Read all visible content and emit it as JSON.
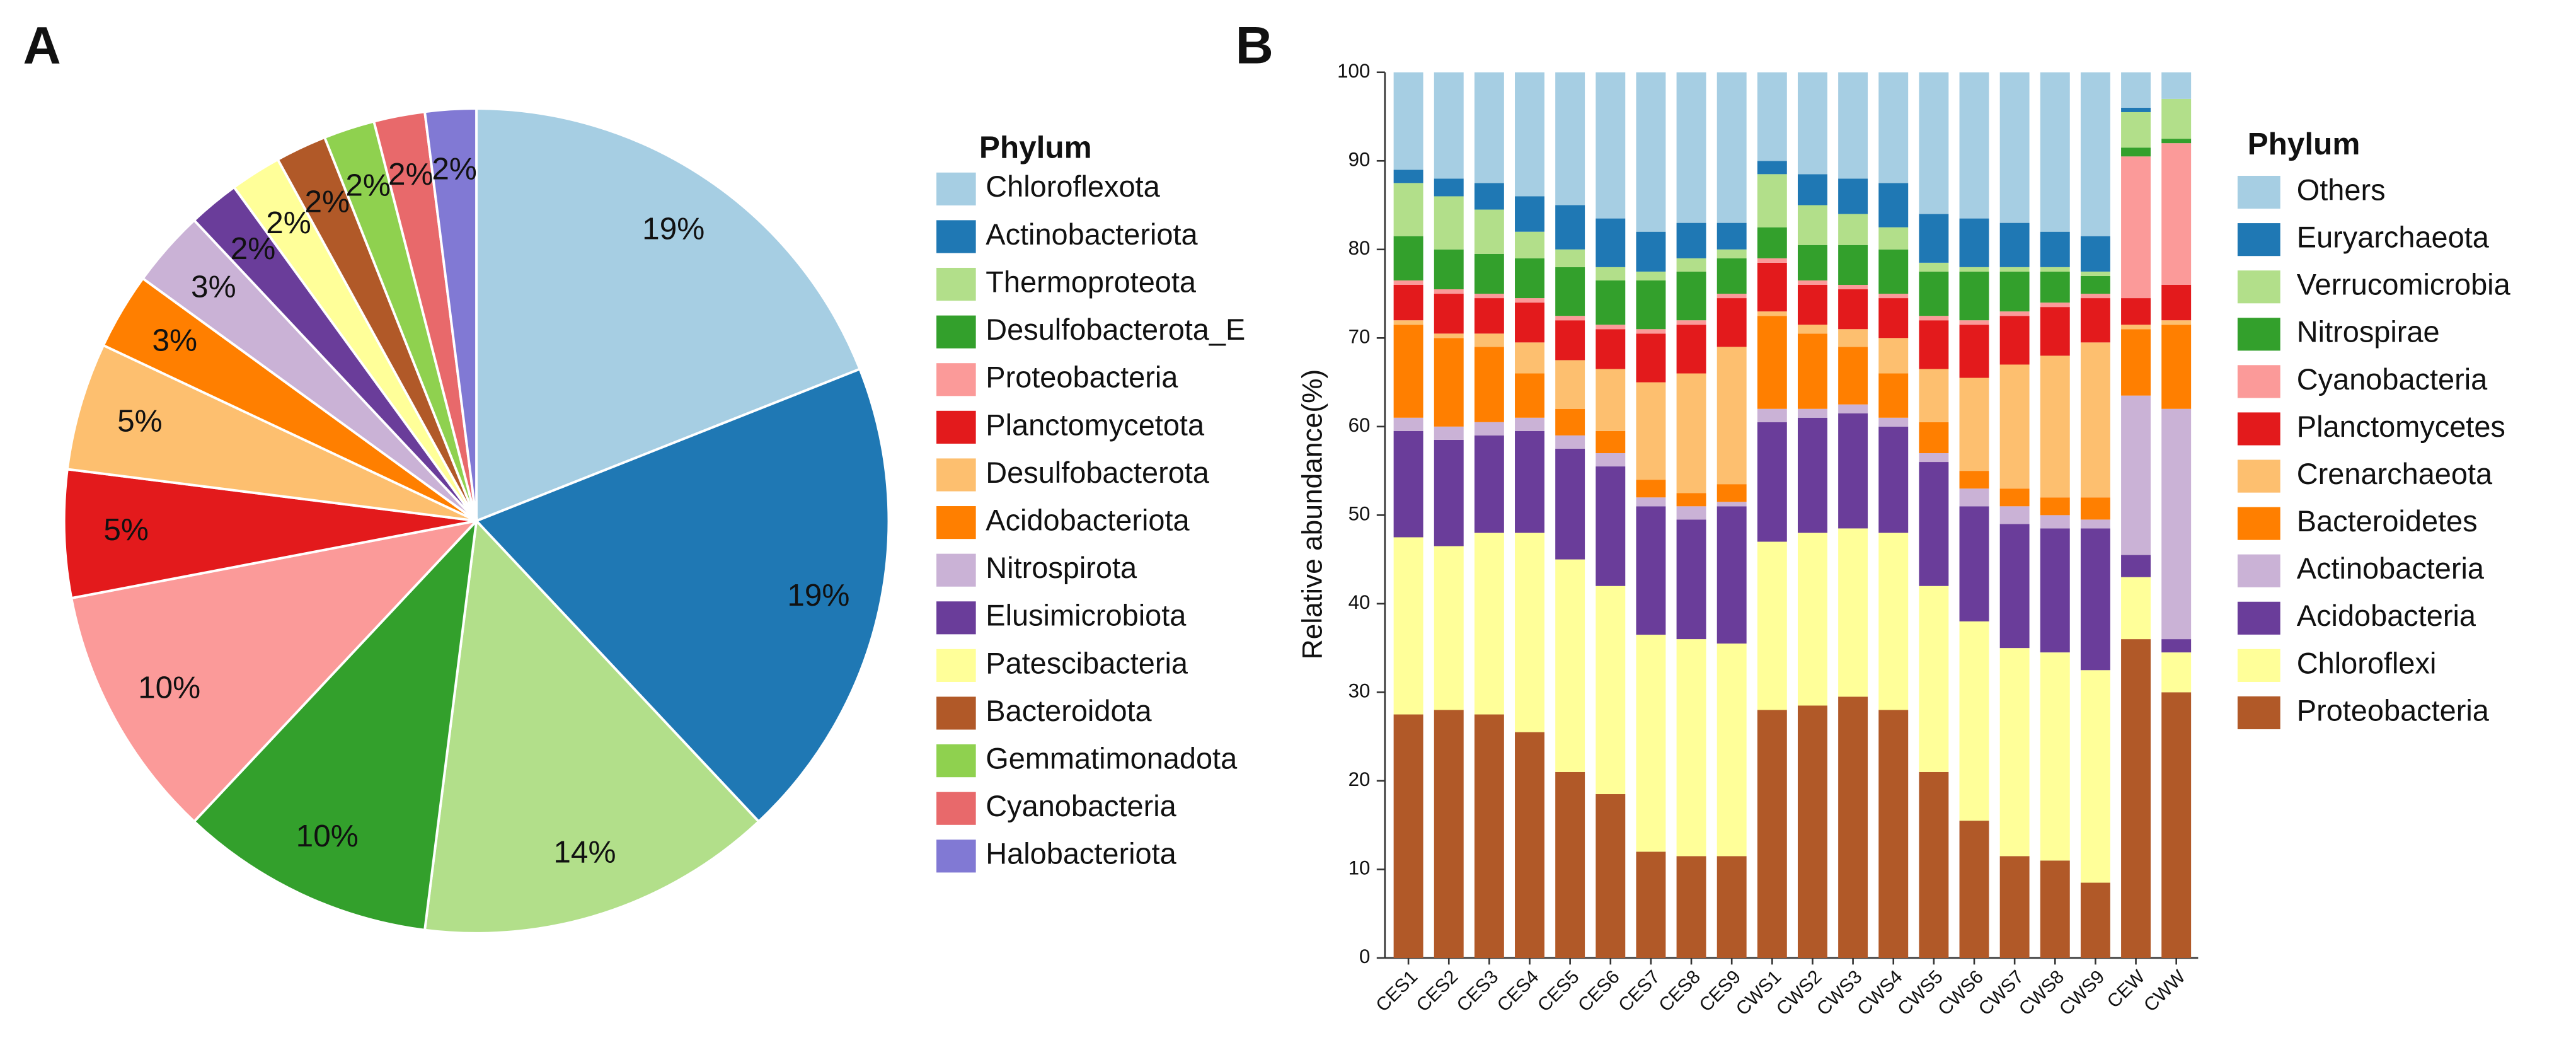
{
  "chart_data": [
    {
      "type": "pie",
      "panel_label": "A",
      "legend_title": "Phylum",
      "categories": [
        "Chloroflexota",
        "Actinobacteriota",
        "Thermoproteota",
        "Desulfobacterota_E",
        "Proteobacteria",
        "Planctomycetota",
        "Desulfobacterota",
        "Acidobacteriota",
        "Nitrospirota",
        "Elusimicrobiota",
        "Patescibacteria",
        "Bacteroidota",
        "Gemmatimonadota",
        "Cyanobacteria",
        "Halobacteriota"
      ],
      "values": [
        19,
        19,
        14,
        10,
        10,
        5,
        5,
        3,
        3,
        2,
        2,
        2,
        2,
        2,
        2
      ],
      "value_labels": [
        "19%",
        "19%",
        "14%",
        "10%",
        "10%",
        "5%",
        "5%",
        "3%",
        "3%",
        "2%",
        "2%",
        "2%",
        "2%",
        "2%",
        "2%"
      ],
      "colors": [
        "#a6cee3",
        "#1f78b4",
        "#b2df8a",
        "#33a02c",
        "#fb9a99",
        "#e31a1c",
        "#fdbf6f",
        "#ff7f00",
        "#cab2d6",
        "#6a3d9a",
        "#ffff99",
        "#b15928",
        "#8fd14f",
        "#e8696b",
        "#8179d4"
      ]
    },
    {
      "type": "bar",
      "stacked": true,
      "panel_label": "B",
      "legend_title": "Phylum",
      "ylabel": "Relative abundance(%)",
      "categories": [
        "CES1",
        "CES2",
        "CES3",
        "CES4",
        "CES5",
        "CES6",
        "CES7",
        "CES8",
        "CES9",
        "CWS1",
        "CWS2",
        "CWS3",
        "CWS4",
        "CWS5",
        "CWS6",
        "CWS7",
        "CWS8",
        "CWS9",
        "CEW",
        "CWW"
      ],
      "ylim": [
        0,
        100
      ],
      "yticks": [
        0,
        10,
        20,
        30,
        40,
        50,
        60,
        70,
        80,
        90,
        100
      ],
      "series": [
        {
          "name": "Proteobacteria",
          "color": "#b15928",
          "values": [
            27.5,
            28,
            27.5,
            25.5,
            21,
            18.5,
            12,
            11.5,
            11.5,
            28,
            28.5,
            29.5,
            28,
            21,
            15.5,
            11.5,
            11,
            8.5,
            36,
            30
          ]
        },
        {
          "name": "Chloroflexi",
          "color": "#ffff99",
          "values": [
            20,
            18.5,
            20.5,
            22.5,
            24,
            23.5,
            24.5,
            24.5,
            24,
            19,
            19.5,
            19,
            20,
            21,
            22.5,
            23.5,
            23.5,
            24,
            7,
            4.5
          ]
        },
        {
          "name": "Acidobacteria",
          "color": "#6a3d9a",
          "values": [
            12,
            12,
            11,
            11.5,
            12.5,
            13.5,
            14.5,
            13.5,
            15.5,
            13.5,
            13,
            13,
            12,
            14,
            13,
            14,
            14,
            16,
            2.5,
            1.5
          ]
        },
        {
          "name": "Actinobacteria",
          "color": "#cab2d6",
          "values": [
            1.5,
            1.5,
            1.5,
            1.5,
            1.5,
            1.5,
            1,
            1.5,
            0.5,
            1.5,
            1,
            1,
            1,
            1,
            2,
            2,
            1.5,
            1,
            18,
            26
          ]
        },
        {
          "name": "Bacteroidetes",
          "color": "#ff7f00",
          "values": [
            10.5,
            10,
            8.5,
            5,
            3,
            2.5,
            2,
            1.5,
            2,
            10.5,
            8.5,
            6.5,
            5,
            3.5,
            2,
            2,
            2,
            2.5,
            7.5,
            9.5
          ]
        },
        {
          "name": "Crenarchaeota",
          "color": "#fdbf6f",
          "values": [
            0.5,
            0.5,
            1.5,
            3.5,
            5.5,
            7,
            11,
            13.5,
            15.5,
            0.5,
            1,
            2,
            4,
            6,
            10.5,
            14,
            16,
            17.5,
            0.5,
            0.5
          ]
        },
        {
          "name": "Planctomycetes",
          "color": "#e31a1c",
          "values": [
            4,
            4.5,
            4,
            4.5,
            4.5,
            4.5,
            5.5,
            5.5,
            5.5,
            5.5,
            4.5,
            4.5,
            4.5,
            5.5,
            6,
            5.5,
            5.5,
            5,
            3,
            4
          ]
        },
        {
          "name": "Cyanobacteria",
          "color": "#fb9a99",
          "values": [
            0.5,
            0.5,
            0.5,
            0.5,
            0.5,
            0.5,
            0.5,
            0.5,
            0.5,
            0.5,
            0.5,
            0.5,
            0.5,
            0.5,
            0.5,
            0.5,
            0.5,
            0.5,
            16,
            16
          ]
        },
        {
          "name": "Nitrospirae",
          "color": "#33a02c",
          "values": [
            5,
            4.5,
            4.5,
            4.5,
            5.5,
            5,
            5.5,
            5.5,
            4,
            3.5,
            4,
            4.5,
            5,
            5,
            5.5,
            4.5,
            3.5,
            2,
            1,
            0.5
          ]
        },
        {
          "name": "Verrucomicrobia",
          "color": "#b2df8a",
          "values": [
            6,
            6,
            5,
            3,
            2,
            1.5,
            1,
            1.5,
            1,
            6,
            4.5,
            3.5,
            2.5,
            1,
            0.5,
            0.5,
            0.5,
            0.5,
            4,
            4.5
          ]
        },
        {
          "name": "Euryarchaeota",
          "color": "#1f78b4",
          "values": [
            1.5,
            2,
            3,
            4,
            5,
            5.5,
            4.5,
            4,
            3,
            1.5,
            3.5,
            4,
            5,
            5.5,
            5.5,
            5,
            4,
            4,
            0.5,
            0
          ]
        },
        {
          "name": "Others",
          "color": "#a6cee3",
          "values": [
            11,
            12,
            12.5,
            14,
            15,
            16.5,
            18,
            17,
            17,
            10,
            11.5,
            12,
            12.5,
            16,
            16.5,
            17,
            18,
            18.5,
            4,
            3
          ]
        }
      ]
    }
  ]
}
